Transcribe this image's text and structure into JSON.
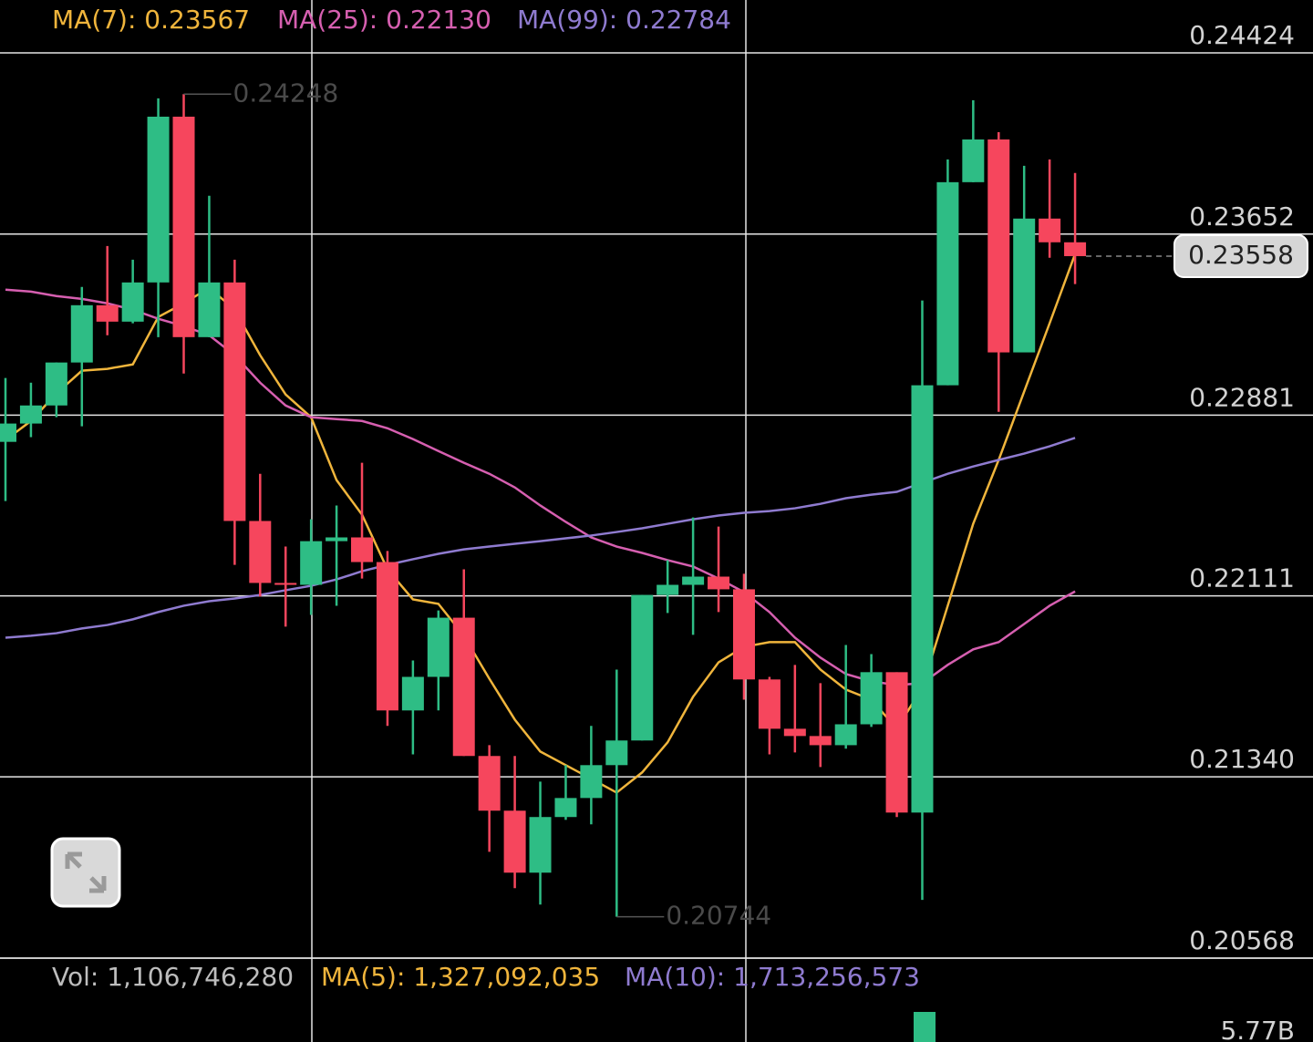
{
  "chart_data": {
    "type": "candlestick",
    "ylim": [
      0.20568,
      0.24649
    ],
    "yticks": [
      0.24424,
      0.23652,
      0.22881,
      0.22111,
      {
        "value": 0.2134,
        "label": "0.21340"
      },
      0.20568
    ],
    "grid": true,
    "up_color": "#2ebd85",
    "down_color": "#f6465d",
    "candles": {
      "open": [
        0.22767,
        0.22845,
        0.22922,
        0.23105,
        0.23349,
        0.23279,
        0.23446,
        0.24152,
        0.23213,
        0.23446,
        0.2243,
        0.22166,
        0.22158,
        0.22344,
        0.2236,
        0.22255,
        0.21623,
        0.21766,
        0.22018,
        0.21429,
        0.21196,
        0.20932,
        0.21169,
        0.2125,
        0.2139,
        0.21495,
        0.22115,
        0.22158,
        0.22193,
        0.22139,
        0.21755,
        0.21545,
        0.21514,
        0.21475,
        0.21564,
        0.21786,
        0.21188,
        0.23008,
        0.23873,
        0.24055,
        0.23148,
        0.23718,
        0.23617
      ],
      "high": [
        0.23039,
        0.23019,
        0.23105,
        0.23427,
        0.23601,
        0.23543,
        0.2423,
        0.24248,
        0.23815,
        0.23543,
        0.22631,
        0.22321,
        0.22437,
        0.22496,
        0.22678,
        0.22302,
        0.21836,
        0.22049,
        0.22224,
        0.21475,
        0.21429,
        0.2132,
        0.2139,
        0.21557,
        0.21797,
        0.22115,
        0.22263,
        0.22445,
        0.22406,
        0.22205,
        0.21766,
        0.21817,
        0.21739,
        0.21902,
        0.21863,
        0.21786,
        0.23369,
        0.2397,
        0.24222,
        0.24086,
        0.23943,
        0.2397,
        0.23912
      ],
      "low": [
        0.22515,
        0.22787,
        0.22872,
        0.22833,
        0.23221,
        0.23272,
        0.23213,
        0.23058,
        0.23213,
        0.22243,
        0.22108,
        0.2198,
        0.2203,
        0.22069,
        0.22185,
        0.21557,
        0.21436,
        0.21623,
        0.21429,
        0.21021,
        0.20866,
        0.20796,
        0.21157,
        0.21138,
        0.20744,
        0.21495,
        0.22038,
        0.21945,
        0.22042,
        0.21669,
        0.21436,
        0.21444,
        0.21382,
        0.2146,
        0.21553,
        0.21169,
        0.20816,
        0.23008,
        0.23873,
        0.22895,
        0.23148,
        0.23551,
        0.23439
      ],
      "close": [
        0.22845,
        0.22922,
        0.23105,
        0.23349,
        0.23279,
        0.23446,
        0.24152,
        0.23213,
        0.23446,
        0.2243,
        0.22166,
        0.22158,
        0.22344,
        0.2236,
        0.22255,
        0.21623,
        0.21766,
        0.22018,
        0.21429,
        0.21196,
        0.20932,
        0.21169,
        0.2125,
        0.2139,
        0.21495,
        0.22115,
        0.22158,
        0.22193,
        0.22139,
        0.21755,
        0.21545,
        0.21514,
        0.21475,
        0.21564,
        0.21786,
        0.21188,
        0.23008,
        0.23873,
        0.24055,
        0.23148,
        0.23718,
        0.23617,
        0.23558
      ]
    },
    "series": [
      {
        "name": "MA(7): 0.23567",
        "color": "#f0b53c",
        "values": [
          0.22775,
          0.22856,
          0.22973,
          0.2307,
          0.23078,
          0.23097,
          0.23299,
          0.23357,
          0.23423,
          0.2333,
          0.23136,
          0.22969,
          0.22872,
          0.22604,
          0.22457,
          0.22224,
          0.22096,
          0.22077,
          0.21941,
          0.21758,
          0.21584,
          0.21448,
          0.2139,
          0.21332,
          0.21273,
          0.21359,
          0.21487,
          0.21681,
          0.21828,
          0.21894,
          0.21914,
          0.21914,
          0.21797,
          0.21712,
          0.21669,
          0.21545,
          0.2172,
          0.22069,
          0.22418,
          0.2269,
          0.22981,
          0.23272,
          0.23567
        ]
      },
      {
        "name": "MA(25): 0.22130",
        "color": "#d65fb0",
        "values": [
          0.23415,
          0.23407,
          0.23388,
          0.23376,
          0.23357,
          0.2333,
          0.23291,
          0.2326,
          0.23221,
          0.23136,
          0.23019,
          0.22922,
          0.22872,
          0.22864,
          0.22856,
          0.22825,
          0.22779,
          0.22728,
          0.22678,
          0.22631,
          0.22573,
          0.22496,
          0.22426,
          0.2236,
          0.22321,
          0.22294,
          0.22263,
          0.22236,
          0.22185,
          0.22127,
          0.22042,
          0.21933,
          0.21848,
          0.21778,
          0.21747,
          0.21731,
          0.21739,
          0.21817,
          0.21883,
          0.21914,
          0.21991,
          0.22069,
          0.2213
        ]
      },
      {
        "name": "MA(99): 0.22784",
        "color": "#8f7bd0",
        "values": [
          0.21933,
          0.21941,
          0.21952,
          0.21972,
          0.21987,
          0.22011,
          0.22042,
          0.22069,
          0.22088,
          0.221,
          0.22115,
          0.22135,
          0.22154,
          0.22181,
          0.22216,
          0.22243,
          0.22267,
          0.2229,
          0.22309,
          0.22321,
          0.22333,
          0.22344,
          0.22356,
          0.22368,
          0.22383,
          0.22399,
          0.22418,
          0.22437,
          0.22453,
          0.22465,
          0.22472,
          0.22484,
          0.22503,
          0.22527,
          0.22542,
          0.22554,
          0.22593,
          0.22631,
          0.22662,
          0.2269,
          0.22717,
          0.22748,
          0.22784
        ]
      }
    ],
    "high_marker": 0.24248,
    "low_marker": 0.20744,
    "last_price": 0.23558,
    "volume": {
      "vol": "Vol: 1,106,746,280",
      "ma5": "MA(5): 1,327,092,035",
      "ma10": "MA(10): 1,713,256,573",
      "axis_label": "5.77B"
    }
  }
}
